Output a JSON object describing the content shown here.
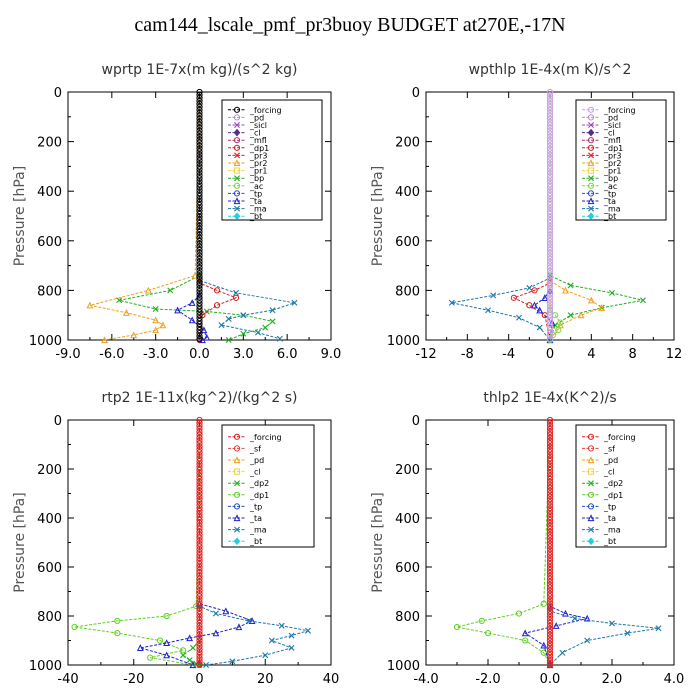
{
  "title": "cam144_lscale_pmf_pr3buoy  BUDGET at270E,-17N",
  "chart_data": [
    {
      "type": "line",
      "title": "wprtp   1E-7x(m kg)/(s^2 kg)",
      "ylabel": "Pressure [hPa]",
      "xlim": [
        -9,
        9
      ],
      "ylim": [
        1000,
        0
      ],
      "xticks": [
        "-9.0",
        "-6.0",
        "-3.0",
        "0.0",
        "3.0",
        "6.0",
        "9.0"
      ],
      "yticks": [
        "0",
        "200",
        "400",
        "600",
        "800",
        "1000"
      ],
      "legend_position": "top-right",
      "legend": [
        {
          "name": "_forcing",
          "color": "#000000",
          "marker": "o"
        },
        {
          "name": "_pd",
          "color": "#b48cd2",
          "marker": "o"
        },
        {
          "name": "_sicl",
          "color": "#9a48c8",
          "marker": "x"
        },
        {
          "name": "_cl",
          "color": "#5a2b8c",
          "marker": "d"
        },
        {
          "name": "_mfl",
          "color": "#b2306a",
          "marker": "o"
        },
        {
          "name": "_dp1",
          "color": "#d02020",
          "marker": "o"
        },
        {
          "name": "_pr3",
          "color": "#e02020",
          "marker": "x"
        },
        {
          "name": "_pr2",
          "color": "#f0a020",
          "marker": "t"
        },
        {
          "name": "_pr1",
          "color": "#f0d040",
          "marker": "s"
        },
        {
          "name": "_bp",
          "color": "#20b020",
          "marker": "x"
        },
        {
          "name": "_ac",
          "color": "#80d840",
          "marker": "o"
        },
        {
          "name": "_tp",
          "color": "#2850c8",
          "marker": "o"
        },
        {
          "name": "_ta",
          "color": "#2020d0",
          "marker": "t"
        },
        {
          "name": "_ma",
          "color": "#1f77a8",
          "marker": "x"
        },
        {
          "name": "_bt",
          "color": "#20d0e0",
          "marker": "d"
        }
      ],
      "series": [
        {
          "name": "_bp",
          "color": "#20b020",
          "x": [
            0,
            0,
            -2.0,
            -5.5,
            -3.0,
            0.5,
            3.0,
            5.0,
            4.5,
            3.0,
            2.0
          ],
          "y": [
            0,
            740,
            800,
            840,
            875,
            885,
            900,
            925,
            950,
            975,
            1000
          ]
        },
        {
          "name": "_ma",
          "color": "#1f77a8",
          "x": [
            0,
            0,
            2.5,
            6.5,
            5.0,
            3.0,
            2.0,
            1.5,
            4.0,
            5.5
          ],
          "y": [
            0,
            760,
            810,
            850,
            880,
            900,
            915,
            940,
            970,
            995
          ]
        },
        {
          "name": "_pr2",
          "color": "#f0a020",
          "x": [
            0,
            -0.3,
            -3.5,
            -7.5,
            -5.0,
            -3.0,
            -2.5,
            -3.0,
            -4.5,
            -6.5
          ],
          "y": [
            0,
            740,
            800,
            860,
            890,
            920,
            940,
            960,
            980,
            1000
          ]
        },
        {
          "name": "_dp1",
          "color": "#d02020",
          "x": [
            0,
            0,
            1.2,
            2.5,
            1.2,
            0.2,
            0
          ],
          "y": [
            0,
            770,
            800,
            830,
            860,
            900,
            1000
          ]
        },
        {
          "name": "_ta",
          "color": "#2020d0",
          "x": [
            0,
            0,
            -0.5,
            -1.5,
            -0.5,
            0.3,
            0.5,
            0.2
          ],
          "y": [
            0,
            820,
            850,
            880,
            920,
            960,
            990,
            1000
          ]
        }
      ]
    },
    {
      "type": "line",
      "title": "wpthlp   1E-4x(m K)/s^2",
      "ylabel": "Pressure [hPa]",
      "xlim": [
        -12,
        12
      ],
      "ylim": [
        1000,
        0
      ],
      "xticks": [
        "-12",
        "-8",
        "-4",
        "0",
        "4",
        "8",
        "12"
      ],
      "yticks": [
        "0",
        "200",
        "400",
        "600",
        "800",
        "1000"
      ],
      "legend_position": "top-right",
      "legend": [
        {
          "name": "_forcing",
          "color": "#c8a0e0",
          "marker": "o"
        },
        {
          "name": "_pd",
          "color": "#b48cd2",
          "marker": "o"
        },
        {
          "name": "_sicl",
          "color": "#9a48c8",
          "marker": "x"
        },
        {
          "name": "_cl",
          "color": "#5a2b8c",
          "marker": "d"
        },
        {
          "name": "_mfl",
          "color": "#b2306a",
          "marker": "o"
        },
        {
          "name": "_dp1",
          "color": "#d02020",
          "marker": "o"
        },
        {
          "name": "_pr3",
          "color": "#e02020",
          "marker": "x"
        },
        {
          "name": "_pr2",
          "color": "#f0a020",
          "marker": "t"
        },
        {
          "name": "_pr1",
          "color": "#f0d040",
          "marker": "s"
        },
        {
          "name": "_bp",
          "color": "#20b020",
          "marker": "x"
        },
        {
          "name": "_ac",
          "color": "#80d840",
          "marker": "o"
        },
        {
          "name": "_tp",
          "color": "#2850c8",
          "marker": "o"
        },
        {
          "name": "_ta",
          "color": "#2020d0",
          "marker": "t"
        },
        {
          "name": "_ma",
          "color": "#1f77a8",
          "marker": "x"
        },
        {
          "name": "_bt",
          "color": "#20d0e0",
          "marker": "d"
        }
      ],
      "series": [
        {
          "name": "_bp",
          "color": "#20b020",
          "x": [
            0,
            0,
            2.0,
            6.0,
            9.0,
            5.0,
            2.0,
            0.5,
            0
          ],
          "y": [
            0,
            740,
            780,
            810,
            840,
            870,
            900,
            940,
            1000
          ]
        },
        {
          "name": "_ma",
          "color": "#1f77a8",
          "x": [
            0,
            0,
            -2.0,
            -5.5,
            -9.5,
            -6.0,
            -3.0,
            -1.0,
            0
          ],
          "y": [
            0,
            750,
            790,
            820,
            850,
            880,
            910,
            950,
            1000
          ]
        },
        {
          "name": "_pr2",
          "color": "#f0a020",
          "x": [
            0,
            0,
            1.5,
            4.0,
            5.0,
            3.0,
            1.0,
            0
          ],
          "y": [
            0,
            760,
            800,
            840,
            870,
            900,
            940,
            1000
          ]
        },
        {
          "name": "_dp1",
          "color": "#d02020",
          "x": [
            0,
            0,
            -1.5,
            -3.5,
            -2.0,
            -0.5,
            0
          ],
          "y": [
            0,
            770,
            800,
            830,
            860,
            900,
            1000
          ]
        },
        {
          "name": "_ta",
          "color": "#2020d0",
          "x": [
            0,
            0,
            -0.5,
            -1.5,
            -1.0,
            0.2,
            0
          ],
          "y": [
            0,
            800,
            830,
            860,
            880,
            930,
            1000
          ]
        },
        {
          "name": "_ac",
          "color": "#80d840",
          "x": [
            0,
            0,
            0.5,
            1.0,
            0.8,
            0.3,
            0
          ],
          "y": [
            0,
            880,
            900,
            930,
            960,
            980,
            1000
          ]
        }
      ]
    },
    {
      "type": "line",
      "title": "rtp2   1E-11x(kg^2)/(kg^2 s)",
      "ylabel": "Pressure [hPa]",
      "xlim": [
        -40,
        40
      ],
      "ylim": [
        1000,
        0
      ],
      "xticks": [
        "-40",
        "-20",
        "0",
        "20",
        "40"
      ],
      "yticks": [
        "0",
        "200",
        "400",
        "600",
        "800",
        "1000"
      ],
      "legend_position": "top-right",
      "legend": [
        {
          "name": "_forcing",
          "color": "#e02020",
          "marker": "o"
        },
        {
          "name": "_sf",
          "color": "#e04040",
          "marker": "o"
        },
        {
          "name": "_pd",
          "color": "#f0a020",
          "marker": "t"
        },
        {
          "name": "_cl",
          "color": "#f0d040",
          "marker": "s"
        },
        {
          "name": "_dp2",
          "color": "#20b020",
          "marker": "x"
        },
        {
          "name": "_dp1",
          "color": "#60d020",
          "marker": "o"
        },
        {
          "name": "_tp",
          "color": "#2850c8",
          "marker": "o"
        },
        {
          "name": "_ta",
          "color": "#2020d0",
          "marker": "t"
        },
        {
          "name": "_ma",
          "color": "#1f77a8",
          "marker": "x"
        },
        {
          "name": "_bt",
          "color": "#20d0e0",
          "marker": "d"
        }
      ],
      "series": [
        {
          "name": "_dp1",
          "color": "#60d020",
          "x": [
            0,
            -1,
            -10,
            -25,
            -38,
            -25,
            -12,
            -5,
            -15,
            -2
          ],
          "y": [
            0,
            760,
            800,
            820,
            845,
            870,
            900,
            940,
            970,
            1000
          ]
        },
        {
          "name": "_ta",
          "color": "#2020d0",
          "x": [
            0,
            0,
            8,
            16,
            12,
            5,
            -3,
            -10,
            -18,
            -10,
            -2
          ],
          "y": [
            0,
            750,
            780,
            820,
            845,
            870,
            890,
            910,
            930,
            960,
            1000
          ]
        },
        {
          "name": "_ma",
          "color": "#1f77a8",
          "x": [
            0,
            0,
            5,
            15,
            25,
            33,
            28,
            22,
            28,
            20,
            10,
            2
          ],
          "y": [
            0,
            760,
            790,
            820,
            840,
            860,
            880,
            900,
            930,
            960,
            985,
            1000
          ]
        },
        {
          "name": "_dp2",
          "color": "#20b020",
          "x": [
            0,
            0,
            -2,
            -5,
            -3,
            -1,
            0
          ],
          "y": [
            0,
            900,
            930,
            960,
            980,
            995,
            1000
          ]
        },
        {
          "name": "_forcing",
          "color": "#e02020",
          "x": [
            0,
            0
          ],
          "y": [
            0,
            1000
          ]
        }
      ]
    },
    {
      "type": "line",
      "title": "thlp2   1E-4x(K^2)/s",
      "ylabel": "Pressure [hPa]",
      "xlim": [
        -4,
        4
      ],
      "ylim": [
        1000,
        0
      ],
      "xticks": [
        "-4.0",
        "-2.0",
        "0.0",
        "2.0",
        "4.0"
      ],
      "yticks": [
        "0",
        "200",
        "400",
        "600",
        "800",
        "1000"
      ],
      "legend_position": "top-right",
      "legend": [
        {
          "name": "_forcing",
          "color": "#e02020",
          "marker": "o"
        },
        {
          "name": "_sf",
          "color": "#e04040",
          "marker": "o"
        },
        {
          "name": "_pd",
          "color": "#f0a020",
          "marker": "t"
        },
        {
          "name": "_cl",
          "color": "#f0d040",
          "marker": "s"
        },
        {
          "name": "_dp2",
          "color": "#20b020",
          "marker": "x"
        },
        {
          "name": "_dp1",
          "color": "#60d020",
          "marker": "o"
        },
        {
          "name": "_tp",
          "color": "#2850c8",
          "marker": "o"
        },
        {
          "name": "_ta",
          "color": "#2020d0",
          "marker": "t"
        },
        {
          "name": "_ma",
          "color": "#1f77a8",
          "marker": "x"
        },
        {
          "name": "_bt",
          "color": "#20d0e0",
          "marker": "d"
        }
      ],
      "series": [
        {
          "name": "_dp1",
          "color": "#60d020",
          "x": [
            0,
            -0.2,
            -1.0,
            -2.2,
            -3.0,
            -2.0,
            -0.8,
            -0.2,
            0
          ],
          "y": [
            0,
            750,
            790,
            820,
            845,
            870,
            900,
            950,
            1000
          ]
        },
        {
          "name": "_ta",
          "color": "#2020d0",
          "x": [
            0,
            0,
            0.5,
            1.2,
            0.2,
            -0.8,
            -0.2,
            0
          ],
          "y": [
            0,
            760,
            790,
            810,
            840,
            870,
            920,
            1000
          ]
        },
        {
          "name": "_ma",
          "color": "#1f77a8",
          "x": [
            0,
            0,
            0.8,
            2.0,
            3.5,
            2.5,
            1.2,
            0.4,
            0
          ],
          "y": [
            0,
            780,
            810,
            830,
            850,
            870,
            900,
            950,
            1000
          ]
        },
        {
          "name": "_forcing",
          "color": "#e02020",
          "x": [
            0,
            0
          ],
          "y": [
            0,
            1000
          ]
        }
      ]
    }
  ]
}
